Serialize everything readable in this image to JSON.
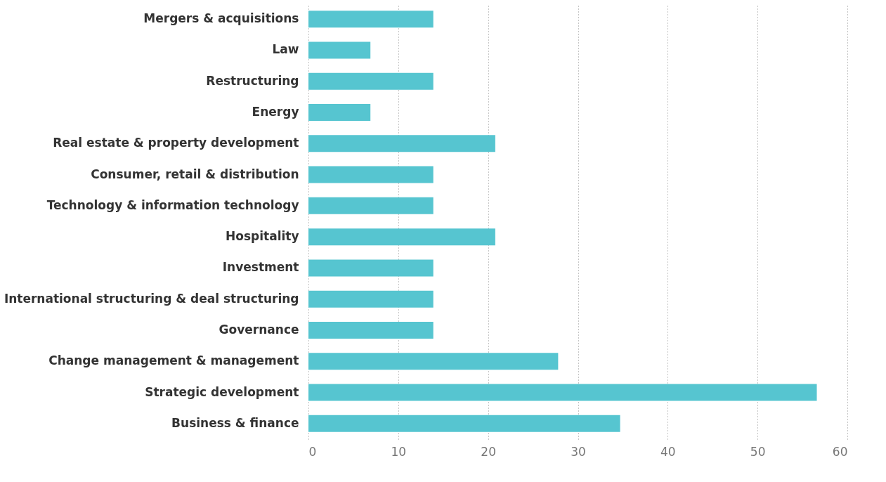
{
  "chart_data": {
    "type": "bar",
    "orientation": "horizontal",
    "categories": [
      "Mergers & acquisitions",
      "Law",
      "Restructuring",
      "Energy",
      "Real estate & property development",
      "Consumer, retail & distribution",
      "Technology & information technology",
      "Hospitality",
      "Investment",
      "International structuring & deal structuring",
      "Governance",
      "Change management & management",
      "Strategic development",
      "Business & finance"
    ],
    "values": [
      13.9,
      6.9,
      13.9,
      6.9,
      20.8,
      13.9,
      13.9,
      20.8,
      13.9,
      13.9,
      13.9,
      27.8,
      56.6,
      34.7
    ],
    "color": "#56c5d0",
    "xlim": [
      0,
      60
    ],
    "xticks": [
      0,
      10,
      20,
      30,
      40,
      50,
      60
    ],
    "grid": "x"
  }
}
